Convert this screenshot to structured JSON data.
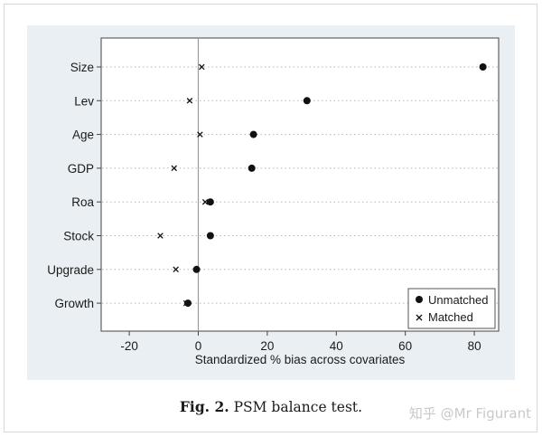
{
  "chart_data": {
    "type": "scatter",
    "title": "",
    "xlabel": "Standardized % bias across covariates",
    "ylabel": "",
    "xlim": [
      -25,
      86
    ],
    "xticks": [
      -20,
      0,
      20,
      40,
      60,
      80
    ],
    "categories": [
      "Size",
      "Lev",
      "Age",
      "GDP",
      "Roa",
      "Stock",
      "Upgrade",
      "Growth"
    ],
    "series": [
      {
        "name": "Unmatched",
        "marker": "dot",
        "values": [
          82.5,
          31.5,
          16.0,
          15.5,
          3.5,
          3.5,
          -0.5,
          -3.0
        ]
      },
      {
        "name": "Matched",
        "marker": "cross",
        "values": [
          1.0,
          -2.5,
          0.5,
          -7.0,
          2.0,
          -11.0,
          -6.5,
          -3.5
        ]
      }
    ],
    "reference_line": 0,
    "grid": "horizontal-dotted",
    "legend_position": "bottom-right"
  },
  "caption": {
    "label": "Fig. 2.",
    "text": "PSM balance test."
  },
  "watermark": "知乎 @Mr Figurant"
}
